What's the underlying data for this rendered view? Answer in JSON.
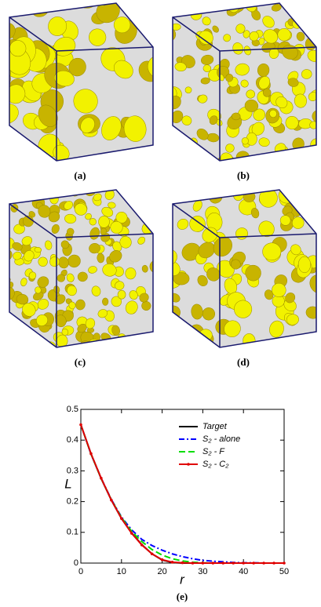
{
  "panels": [
    {
      "label": "(a)"
    },
    {
      "label": "(b)"
    },
    {
      "label": "(c)"
    },
    {
      "label": "(d)"
    }
  ],
  "chart_data": {
    "type": "line",
    "panel_label": "(e)",
    "x_label": "r",
    "y_label": "L",
    "x": [
      0,
      2.5,
      5,
      7.5,
      10,
      12.5,
      15,
      17.5,
      20,
      22.5,
      25,
      27.5,
      30,
      32.5,
      35,
      37.5,
      40,
      42.5,
      45,
      47.5,
      50
    ],
    "series": [
      {
        "name": "Target",
        "color": "#000000",
        "dash": "solid",
        "values": [
          0.45,
          0.355,
          0.275,
          0.205,
          0.145,
          0.098,
          0.06,
          0.03,
          0.01,
          0.002,
          0,
          0,
          0,
          0,
          0,
          0,
          0,
          0,
          0,
          0,
          0
        ]
      },
      {
        "name": "S₂ - alone",
        "color": "#0000ff",
        "dash": "dashdot",
        "values": [
          0.45,
          0.355,
          0.276,
          0.207,
          0.15,
          0.108,
          0.077,
          0.057,
          0.042,
          0.03,
          0.021,
          0.014,
          0.009,
          0.006,
          0.004,
          0.002,
          0.001,
          0.001,
          0,
          0,
          0
        ]
      },
      {
        "name": "S₂ - F",
        "color": "#00dd00",
        "dash": "dash",
        "values": [
          0.45,
          0.355,
          0.275,
          0.206,
          0.148,
          0.103,
          0.07,
          0.044,
          0.026,
          0.014,
          0.007,
          0.003,
          0.001,
          0,
          0,
          0,
          0,
          0,
          0,
          0,
          0
        ]
      },
      {
        "name": "S₂ - C₂",
        "color": "#e00000",
        "dash": "marker",
        "values": [
          0.45,
          0.356,
          0.276,
          0.205,
          0.145,
          0.097,
          0.059,
          0.03,
          0.011,
          0.003,
          0.001,
          0,
          0,
          0,
          0,
          0,
          0,
          0,
          0,
          0,
          0
        ]
      }
    ],
    "xlim": [
      0,
      50
    ],
    "xticks": [
      0,
      10,
      20,
      30,
      40,
      50
    ],
    "ylim": [
      0,
      0.5
    ],
    "yticks": [
      0,
      0.1,
      0.2,
      0.3,
      0.4,
      0.5
    ],
    "grid": false,
    "legend": "upper right"
  }
}
